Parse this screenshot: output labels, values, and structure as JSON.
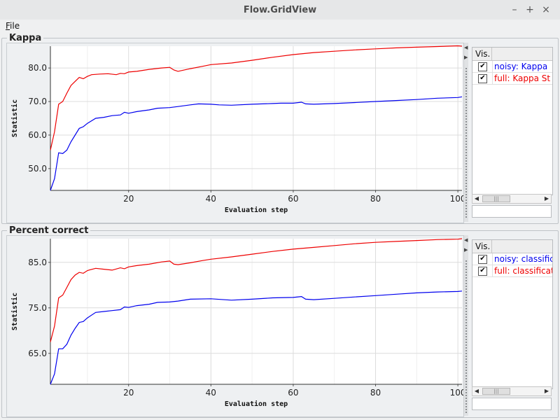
{
  "window": {
    "title": "Flow.GridView",
    "minimize": "–",
    "maximize": "+",
    "close": "×"
  },
  "menu": {
    "file_mnemonic": "F",
    "file_rest": "ile"
  },
  "legend_header": "Vis.",
  "check_mark": "✔",
  "colors": {
    "noisy": "#0000ee",
    "full": "#ee0000"
  },
  "panels": [
    {
      "title": "Kappa",
      "legend": [
        {
          "label": "noisy: Kappa",
          "color": "#0000ee",
          "checked": true
        },
        {
          "label": "full: Kappa St",
          "color": "#ee0000",
          "checked": true
        }
      ]
    },
    {
      "title": "Percent correct",
      "legend": [
        {
          "label": "noisy: classific",
          "color": "#0000ee",
          "checked": true
        },
        {
          "label": "full: classificat",
          "color": "#ee0000",
          "checked": true
        }
      ]
    }
  ],
  "chart_data": [
    {
      "type": "line",
      "title": "Kappa",
      "xlabel": "Evaluation step",
      "ylabel": "Statistic",
      "xlim": [
        1,
        101
      ],
      "ylim": [
        43.5,
        86.5
      ],
      "xticks": [
        20,
        40,
        60,
        80,
        100
      ],
      "xtick_labels": [
        "20",
        "40",
        "60",
        "80",
        "100"
      ],
      "yticks": [
        50,
        60,
        70,
        80
      ],
      "ytick_labels": [
        "50.0",
        "60.0",
        "70.0",
        "80.0"
      ],
      "grid": true,
      "series": [
        {
          "name": "noisy: Kappa",
          "color": "#0000ee",
          "x": [
            1,
            2,
            3,
            4,
            5,
            6,
            7,
            8,
            9,
            10,
            12,
            14,
            16,
            18,
            19,
            20,
            22,
            25,
            27,
            30,
            32,
            35,
            37,
            40,
            42,
            45,
            50,
            55,
            57,
            60,
            62,
            63,
            65,
            70,
            75,
            80,
            85,
            90,
            95,
            100,
            101
          ],
          "y": [
            43.5,
            47,
            54.7,
            54.5,
            55.5,
            58,
            60,
            62,
            62.5,
            63.5,
            65,
            65.3,
            65.8,
            66,
            66.8,
            66.5,
            67,
            67.5,
            68,
            68.2,
            68.5,
            69,
            69.3,
            69.2,
            69,
            68.9,
            69.2,
            69.4,
            69.5,
            69.5,
            69.8,
            69.3,
            69.2,
            69.4,
            69.7,
            70,
            70.3,
            70.6,
            71,
            71.2,
            71.4
          ]
        },
        {
          "name": "full: Kappa St",
          "color": "#ee0000",
          "x": [
            1,
            2,
            3,
            4,
            5,
            6,
            7,
            8,
            9,
            10,
            11,
            13,
            15,
            17,
            18,
            19,
            20,
            22,
            25,
            28,
            30,
            31,
            32,
            35,
            38,
            40,
            45,
            50,
            55,
            60,
            65,
            70,
            75,
            80,
            85,
            90,
            95,
            100,
            101
          ],
          "y": [
            55.5,
            61,
            69.2,
            70,
            72.5,
            74.8,
            76,
            77.2,
            76.8,
            77.5,
            78,
            78.2,
            78.3,
            78,
            78.4,
            78.3,
            78.8,
            79,
            79.6,
            80,
            80.2,
            79.4,
            79,
            79.8,
            80.5,
            81,
            81.5,
            82.3,
            83.2,
            84,
            84.6,
            85,
            85.4,
            85.7,
            86,
            86.2,
            86.4,
            86.6,
            86.5
          ]
        }
      ]
    },
    {
      "type": "line",
      "title": "Percent correct",
      "xlabel": "Evaluation step",
      "ylabel": "Statistic",
      "xlim": [
        1,
        101
      ],
      "ylim": [
        58.2,
        90.2
      ],
      "xticks": [
        20,
        40,
        60,
        80,
        100
      ],
      "xtick_labels": [
        "20",
        "40",
        "60",
        "80",
        "100"
      ],
      "yticks": [
        65,
        75,
        85
      ],
      "ytick_labels": [
        "65.0",
        "75.0",
        "85.0"
      ],
      "grid": true,
      "series": [
        {
          "name": "noisy: classific",
          "color": "#0000ee",
          "x": [
            1,
            2,
            3,
            4,
            5,
            6,
            7,
            8,
            9,
            10,
            12,
            14,
            16,
            18,
            19,
            20,
            22,
            25,
            27,
            30,
            32,
            35,
            40,
            45,
            50,
            55,
            60,
            62,
            63,
            65,
            70,
            75,
            80,
            85,
            90,
            95,
            100,
            101
          ],
          "y": [
            58.2,
            60.5,
            66,
            66,
            67,
            69,
            70.5,
            71.8,
            72,
            72.8,
            74,
            74.2,
            74.4,
            74.6,
            75.2,
            75.1,
            75.5,
            75.8,
            76.2,
            76.3,
            76.5,
            76.9,
            77,
            76.7,
            76.9,
            77.2,
            77.3,
            77.5,
            76.9,
            76.8,
            77.1,
            77.4,
            77.7,
            78,
            78.3,
            78.5,
            78.6,
            78.7
          ]
        },
        {
          "name": "full: classificat",
          "color": "#ee0000",
          "x": [
            1,
            2,
            3,
            4,
            5,
            6,
            7,
            8,
            9,
            10,
            12,
            14,
            16,
            18,
            19,
            20,
            22,
            25,
            28,
            30,
            31,
            32,
            35,
            38,
            40,
            45,
            50,
            55,
            60,
            65,
            70,
            75,
            80,
            85,
            90,
            95,
            100,
            101
          ],
          "y": [
            67.5,
            71,
            77.2,
            77.8,
            79.5,
            81.2,
            82.2,
            82.8,
            82.6,
            83.2,
            83.7,
            83.5,
            83.3,
            83.8,
            83.6,
            84,
            84.3,
            84.6,
            85.1,
            85.3,
            84.6,
            84.5,
            84.9,
            85.4,
            85.7,
            86.2,
            86.8,
            87.4,
            87.9,
            88.3,
            88.7,
            89.1,
            89.4,
            89.6,
            89.8,
            90,
            90.1,
            90.2
          ]
        }
      ]
    }
  ]
}
